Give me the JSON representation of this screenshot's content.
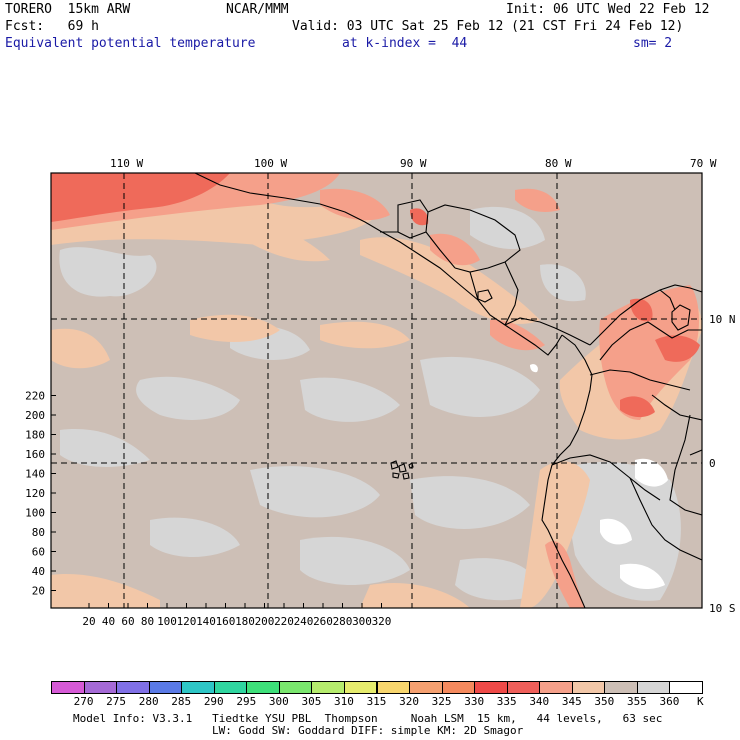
{
  "header": {
    "model": "TORERO  15km ARW",
    "org": "NCAR/MMM",
    "init": "Init: 06 UTC Wed 22 Feb 12",
    "fcst": "Fcst:   69 h",
    "valid": "Valid: 03 UTC Sat 25 Feb 12 (21 CST Fri 24 Feb 12)",
    "field": "Equivalent potential temperature",
    "kindex": "at k-index =  44",
    "sm": "sm= 2"
  },
  "map": {
    "lon_labels": [
      "110 W",
      "100 W",
      "90 W",
      "80 W",
      "70 W"
    ],
    "lat_labels": [
      "10 N",
      "0",
      "10 S"
    ],
    "y_ticks": [
      "220",
      "200",
      "180",
      "160",
      "140",
      "120",
      "100",
      "80",
      "60",
      "40",
      "20"
    ],
    "x_ticks": [
      "20",
      "40",
      "60",
      "80",
      "100",
      "120",
      "140",
      "160",
      "180",
      "200",
      "220",
      "240",
      "260",
      "280",
      "300",
      "320"
    ],
    "field_colors": {
      "ocean_background": "#cdbfb6",
      "light_gray": "#d6d6d6",
      "peach": "#f2c7a8",
      "salmon": "#f5a08a",
      "red": "#ef6a5a",
      "dark_red": "#ea4b48",
      "white": "#ffffff"
    },
    "line_color": "#000000"
  },
  "colorbar": {
    "labels": [
      "270",
      "275",
      "280",
      "285",
      "290",
      "295",
      "300",
      "305",
      "310",
      "315",
      "320",
      "325",
      "330",
      "335",
      "340",
      "345",
      "350",
      "355",
      "360"
    ],
    "unit": "K",
    "colors": [
      "#d65ad6",
      "#a56ad6",
      "#8070e6",
      "#5a7ae6",
      "#2ec6c6",
      "#30d6a0",
      "#3ee07a",
      "#7ae66e",
      "#b6ec6e",
      "#e6ec6e",
      "#f8d66e",
      "#f5a070",
      "#f58a5e",
      "#ef4a48",
      "#ef5f5a",
      "#f5a08a",
      "#f2c7a8",
      "#cdbfb6",
      "#d6d6d6",
      "#ffffff"
    ]
  },
  "footer": {
    "line1": "Model Info: V3.3.1   Tiedtke YSU PBL  Thompson     Noah LSM  15 km,   44 levels,   63 sec",
    "line2": "LW: Godd SW: Goddard DIFF: simple KM: 2D Smagor"
  }
}
